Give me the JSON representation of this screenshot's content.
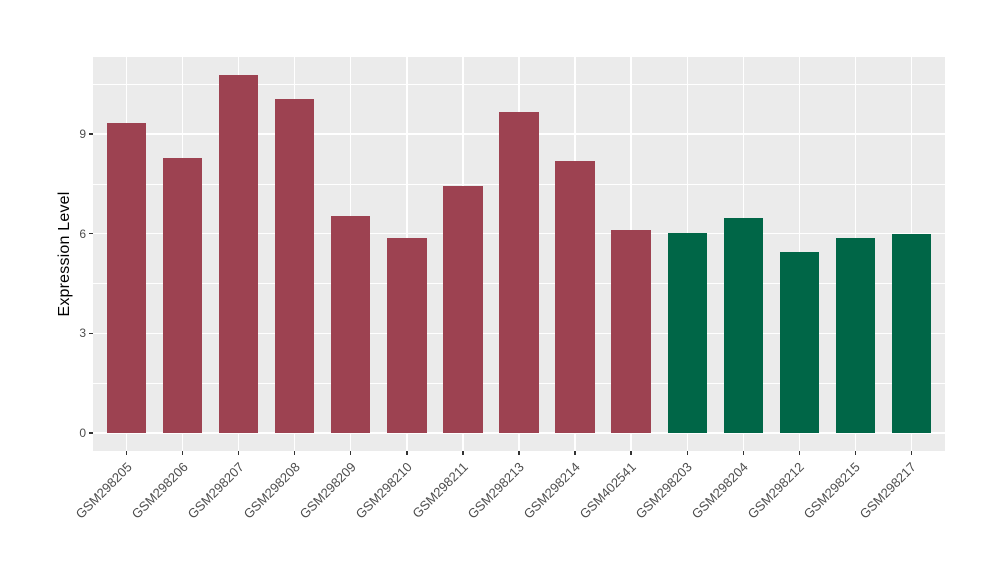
{
  "chart_data": {
    "type": "bar",
    "title": "",
    "xlabel": "",
    "ylabel": "Expression Level",
    "categories": [
      "GSM298205",
      "GSM298206",
      "GSM298207",
      "GSM298208",
      "GSM298209",
      "GSM298210",
      "GSM298211",
      "GSM298213",
      "GSM298214",
      "GSM402541",
      "GSM298203",
      "GSM298204",
      "GSM298212",
      "GSM298215",
      "GSM298217"
    ],
    "values": [
      9.33,
      8.28,
      10.78,
      10.05,
      6.53,
      5.87,
      7.44,
      9.66,
      8.18,
      6.11,
      6.01,
      6.47,
      5.45,
      5.86,
      5.99
    ],
    "bar_groups": [
      "group1",
      "group1",
      "group1",
      "group1",
      "group1",
      "group1",
      "group1",
      "group1",
      "group1",
      "group1",
      "group2",
      "group2",
      "group2",
      "group2",
      "group2"
    ],
    "group_colors": {
      "group1": "#9D4251",
      "group2": "#006647"
    },
    "yticks": [
      0,
      3,
      6,
      9
    ],
    "minor_yticks": [
      1.5,
      4.5,
      7.5,
      10.5
    ],
    "ylim": [
      -0.54,
      11.32
    ],
    "legend_position": "none",
    "grid": "on",
    "panel_bg": "#EBEBEB",
    "grid_color": "#FFFFFF",
    "axis_text_color": "#4D4D4D",
    "tick_mark_color": "#333333"
  }
}
